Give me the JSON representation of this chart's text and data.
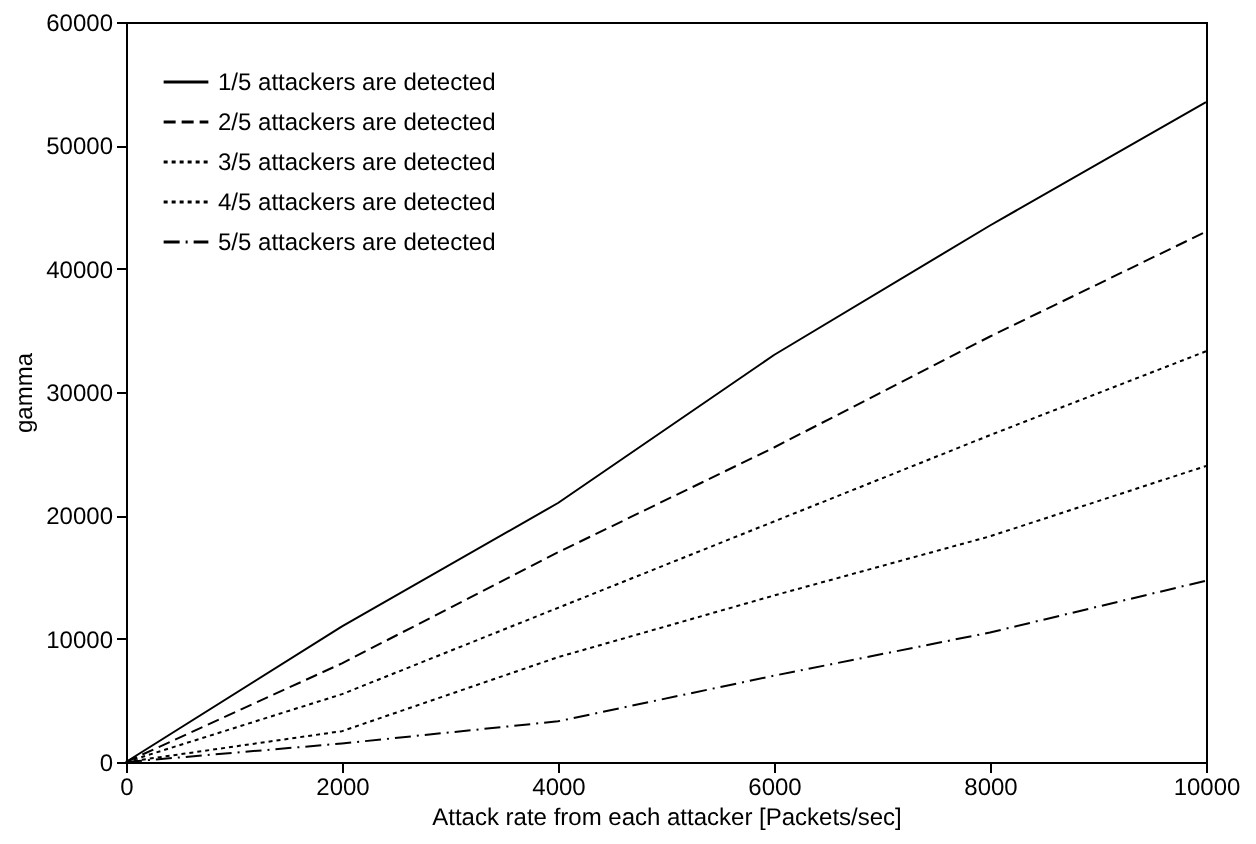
{
  "chart_data": {
    "type": "line",
    "xlabel": "Attack rate from each attacker [Packets/sec]",
    "ylabel": "gamma",
    "x": [
      0,
      2000,
      4000,
      6000,
      8000,
      10000
    ],
    "series": [
      {
        "name": "1/5 attackers are detected",
        "color": "#000000",
        "line_style": "solid",
        "values": [
          0,
          11000,
          21000,
          33000,
          43500,
          53500
        ]
      },
      {
        "name": "2/5 attackers are detected",
        "color": "#000000",
        "line_style": "dashed",
        "values": [
          0,
          8000,
          17000,
          25500,
          34500,
          43000
        ]
      },
      {
        "name": "3/5 attackers are detected",
        "color": "#000000",
        "line_style": "dotted",
        "values": [
          0,
          5500,
          12500,
          19500,
          26500,
          33300
        ]
      },
      {
        "name": "4/5 attackers are detected",
        "color": "#000000",
        "line_style": "dotted",
        "values": [
          0,
          2500,
          8500,
          13500,
          18300,
          24000
        ]
      },
      {
        "name": "5/5 attackers are detected",
        "color": "#000000",
        "line_style": "dashdot",
        "values": [
          0,
          1500,
          3300,
          7000,
          10500,
          14700
        ]
      }
    ],
    "xlim": [
      0,
      10000
    ],
    "xticks": [
      0,
      2000,
      4000,
      6000,
      8000,
      10000
    ],
    "ylim": [
      0,
      60000
    ],
    "yticks": [
      0,
      10000,
      20000,
      30000,
      40000,
      50000,
      60000
    ],
    "grid": false,
    "legend": "top left",
    "marker": "none"
  }
}
